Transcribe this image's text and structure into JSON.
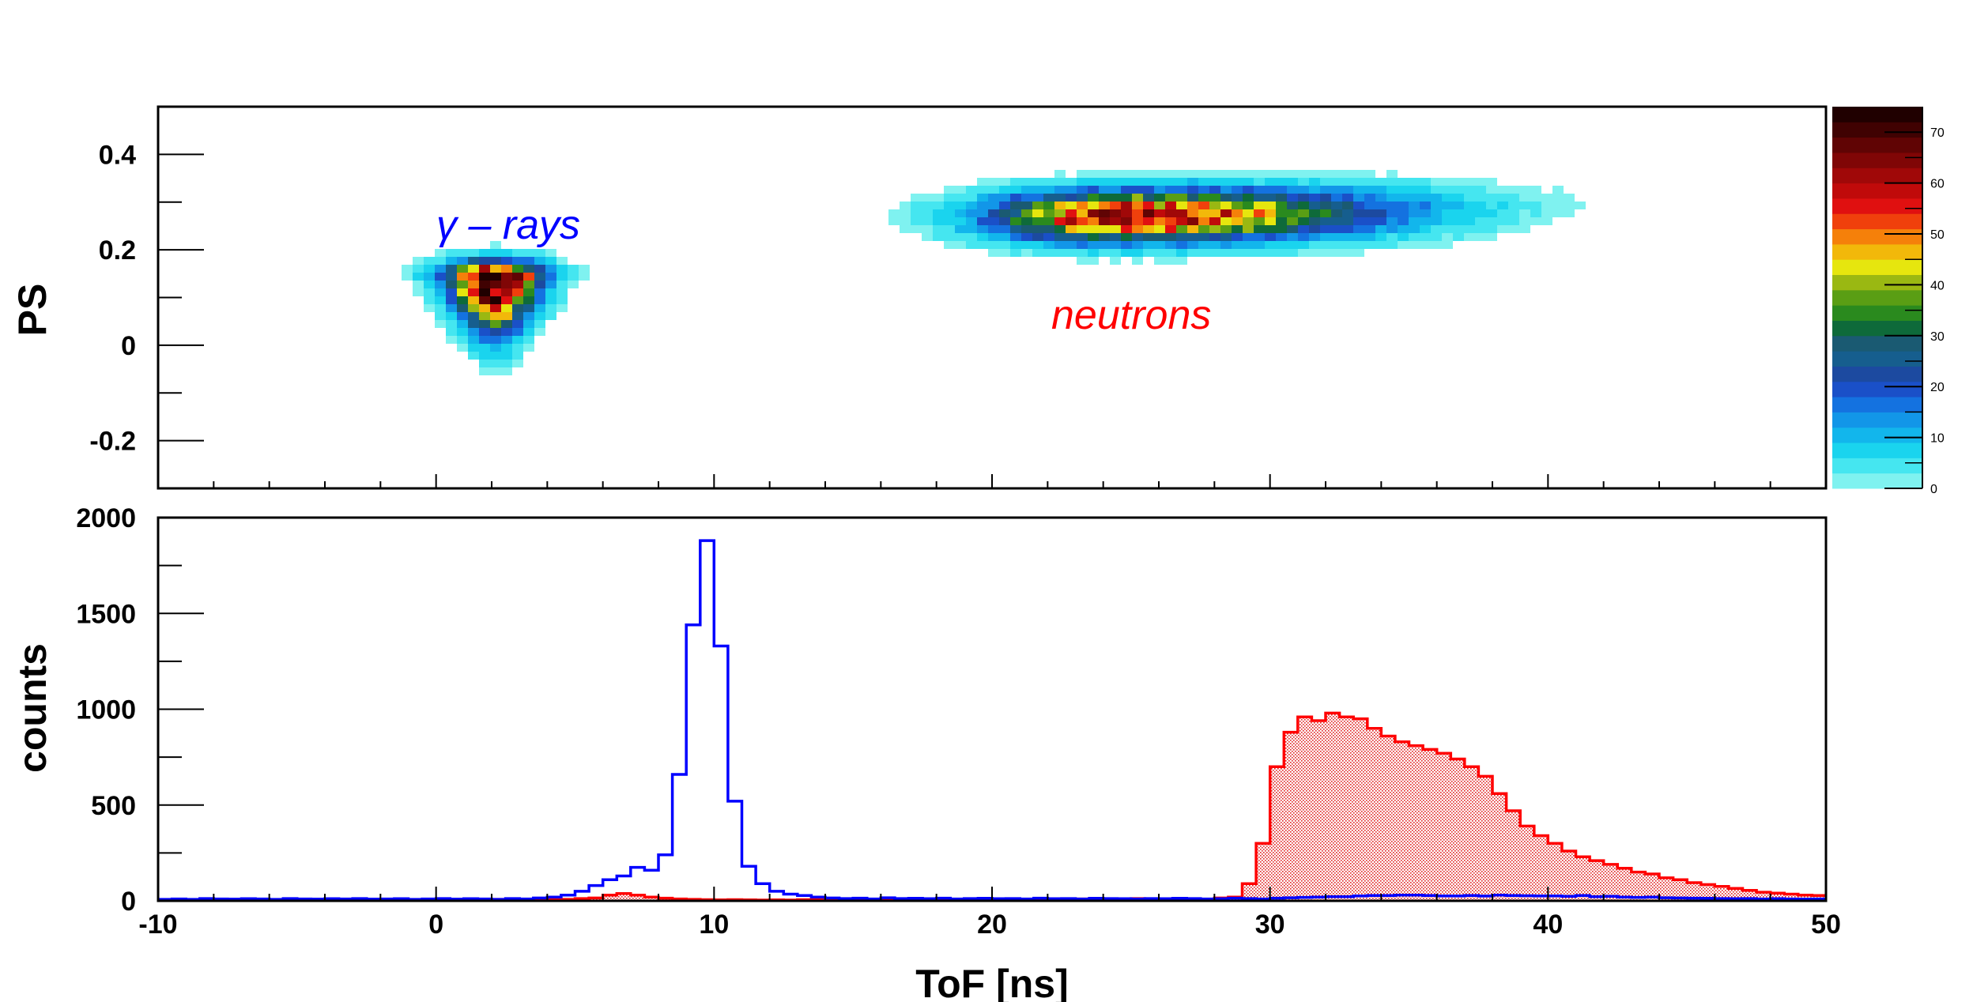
{
  "chart_data": [
    {
      "type": "heatmap",
      "title": "",
      "xlabel": "",
      "ylabel": "PS",
      "xlim": [
        -10,
        50
      ],
      "ylim": [
        -0.3,
        0.5
      ],
      "yticks": [
        "-0.2",
        "0",
        "0.2",
        "0.4"
      ],
      "zlim": [
        0,
        75
      ],
      "palette_ticks": [
        "0",
        "10",
        "20",
        "30",
        "40",
        "50",
        "60",
        "70"
      ],
      "palette_colors": [
        "#7ff2f0",
        "#45e6f0",
        "#1ad4ee",
        "#12b6ec",
        "#1296e8",
        "#1472e0",
        "#1a50c8",
        "#1c4aa0",
        "#165e8e",
        "#1a5a72",
        "#0e6a3a",
        "#2a8a1e",
        "#5a9e14",
        "#9ab812",
        "#e6e60e",
        "#f2b80a",
        "#f5800a",
        "#f0400c",
        "#e01010",
        "#c00a0a",
        "#a00808",
        "#800606",
        "#600404",
        "#400202",
        "#200000"
      ],
      "clusters": [
        {
          "name": "gamma-rays",
          "center_tof": 2.1,
          "center_ps": 0.14,
          "peak_counts": 75
        },
        {
          "name": "neutrons",
          "center_tof": 25,
          "center_ps": 0.27,
          "peak_counts": 60
        }
      ],
      "annotations": [
        {
          "text": "γ – rays",
          "color": "#0000ff"
        },
        {
          "text": "neutrons",
          "color": "#ff0000"
        }
      ]
    },
    {
      "type": "line",
      "title": "",
      "xlabel": "ToF [ns]",
      "ylabel": "counts",
      "xlim": [
        -10,
        50
      ],
      "ylim": [
        0,
        2000
      ],
      "xticks": [
        "-10",
        "0",
        "10",
        "20",
        "30",
        "40",
        "50"
      ],
      "yticks": [
        "0",
        "500",
        "1000",
        "1500",
        "2000"
      ],
      "bin_width": 0.5,
      "bin_start": -10,
      "series": [
        {
          "name": "gamma",
          "color": "#0000ff",
          "values": [
            8,
            10,
            8,
            12,
            10,
            9,
            11,
            10,
            8,
            12,
            10,
            9,
            11,
            10,
            12,
            9,
            10,
            11,
            8,
            10,
            12,
            9,
            11,
            10,
            8,
            12,
            10,
            15,
            20,
            30,
            50,
            80,
            110,
            130,
            175,
            160,
            240,
            660,
            1440,
            1880,
            1330,
            520,
            180,
            90,
            50,
            35,
            28,
            20,
            15,
            12,
            14,
            10,
            16,
            12,
            13,
            11,
            14,
            10,
            12,
            13,
            11,
            12,
            10,
            14,
            11,
            12,
            10,
            13,
            12,
            11,
            10,
            12,
            11,
            13,
            12,
            10,
            11,
            14,
            12,
            10,
            14,
            16,
            18,
            20,
            22,
            22,
            26,
            28,
            28,
            30,
            30,
            28,
            26,
            26,
            28,
            25,
            30,
            28,
            27,
            26,
            26,
            24,
            28,
            22,
            24,
            20,
            18,
            20,
            16,
            15,
            14,
            13,
            12,
            11,
            12,
            10,
            11,
            10,
            9,
            10
          ]
        },
        {
          "name": "neutron",
          "color": "#ff0000",
          "fill": "hatched",
          "values": [
            5,
            4,
            6,
            5,
            3,
            4,
            5,
            6,
            4,
            5,
            6,
            4,
            7,
            5,
            4,
            6,
            5,
            4,
            6,
            5,
            3,
            6,
            4,
            5,
            8,
            6,
            5,
            8,
            10,
            8,
            12,
            15,
            30,
            38,
            30,
            20,
            14,
            10,
            8,
            6,
            5,
            6,
            5,
            4,
            5,
            4,
            6,
            5,
            4,
            6,
            5,
            4,
            6,
            5,
            4,
            6,
            5,
            4,
            5,
            6,
            4,
            5,
            6,
            4,
            5,
            8,
            10,
            9,
            8,
            7,
            12,
            10,
            8,
            12,
            10,
            8,
            15,
            20,
            90,
            300,
            700,
            880,
            960,
            940,
            980,
            960,
            950,
            900,
            860,
            830,
            810,
            790,
            770,
            740,
            700,
            650,
            560,
            470,
            390,
            340,
            300,
            260,
            230,
            210,
            190,
            170,
            150,
            140,
            120,
            110,
            95,
            85,
            75,
            65,
            55,
            45,
            40,
            35,
            30,
            28
          ]
        }
      ]
    }
  ]
}
